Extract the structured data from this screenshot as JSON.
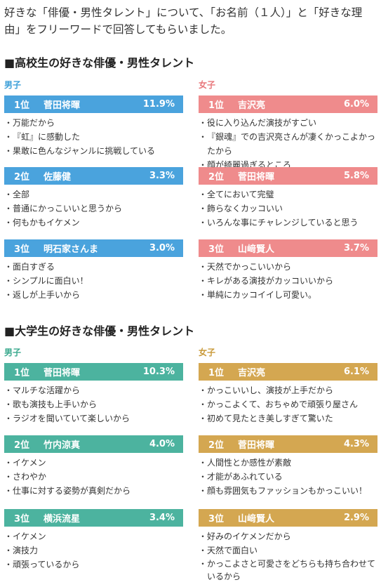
{
  "intro": "好きな「俳優・男性タレント」について、「お名前（１人）」と「好きな理由」をフリーワードで回答してもらいました。",
  "colors": {
    "boys_high": "#4aa3dd",
    "girls_high": "#ef8b8c",
    "boys_univ": "#4cb39f",
    "girls_univ": "#d4a751",
    "boys_label": "#3c9fd8",
    "girls_label": "#e8777b",
    "boys_label_univ": "#3aa98e",
    "girls_label_univ": "#c99a3a"
  },
  "sections": [
    {
      "title": "■高校生の好きな俳優・男性タレント",
      "groups": [
        {
          "label": "男子",
          "entries": [
            {
              "rank": "1位",
              "name": "菅田将暉",
              "pct": "11.9%",
              "reasons": [
                "万能だから",
                "『虹』に感動した",
                "果敢に色んなジャンルに挑戦している"
              ]
            },
            {
              "rank": "2位",
              "name": "佐藤健",
              "pct": "3.3%",
              "reasons": [
                "全部",
                "普通にかっこいいと思うから",
                "何もかもイケメン"
              ]
            },
            {
              "rank": "3位",
              "name": "明石家さんま",
              "pct": "3.0%",
              "reasons": [
                "面白すぎる",
                "シンプルに面白い！",
                "返しが上手いから"
              ]
            }
          ]
        },
        {
          "label": "女子",
          "entries": [
            {
              "rank": "1位",
              "name": "吉沢亮",
              "pct": "6.0%",
              "reasons": [
                "役に入り込んだ演技がすごい",
                "『銀魂』での吉沢亮さんが凄くかっこよかったから",
                "顔が綺麗過ぎるところ"
              ]
            },
            {
              "rank": "2位",
              "name": "菅田将暉",
              "pct": "5.8%",
              "reasons": [
                "全てにおいて完璧",
                "飾らなくカッコいい",
                "いろんな事にチャレンジしていると思う"
              ]
            },
            {
              "rank": "3位",
              "name": "山﨑賢人",
              "pct": "3.7%",
              "reasons": [
                "天然でかっこいいから",
                "キレがある演技がカッコいいから",
                "単純にカッコイイし可愛い。"
              ]
            }
          ]
        }
      ]
    },
    {
      "title": "■大学生の好きな俳優・男性タレント",
      "groups": [
        {
          "label": "男子",
          "entries": [
            {
              "rank": "1位",
              "name": "菅田将暉",
              "pct": "10.3%",
              "reasons": [
                "マルチな活躍から",
                "歌も演技も上手いから",
                "ラジオを聞いていて楽しいから"
              ]
            },
            {
              "rank": "2位",
              "name": "竹内涼真",
              "pct": "4.0%",
              "reasons": [
                "イケメン",
                "さわやか",
                "仕事に対する姿勢が真剣だから"
              ]
            },
            {
              "rank": "3位",
              "name": "横浜流星",
              "pct": "3.4%",
              "reasons": [
                "イケメン",
                "演技力",
                "頑張っているから"
              ]
            }
          ]
        },
        {
          "label": "女子",
          "entries": [
            {
              "rank": "1位",
              "name": "吉沢亮",
              "pct": "6.1%",
              "reasons": [
                "かっこいいし、演技が上手だから",
                "かっこよくて、おちゃめで頑張り屋さん",
                "初めて見たとき美しすぎて驚いた"
              ]
            },
            {
              "rank": "2位",
              "name": "菅田将暉",
              "pct": "4.3%",
              "reasons": [
                "人間性とか感性が素敵",
                "才能があふれている",
                "顔も雰囲気もファッションもかっこいい！"
              ]
            },
            {
              "rank": "3位",
              "name": "山﨑賢人",
              "pct": "2.9%",
              "reasons": [
                "好みのイケメンだから",
                "天然で面白い",
                "かっこよさと可愛さをどちらも持ち合わせているから"
              ]
            }
          ]
        }
      ]
    }
  ]
}
